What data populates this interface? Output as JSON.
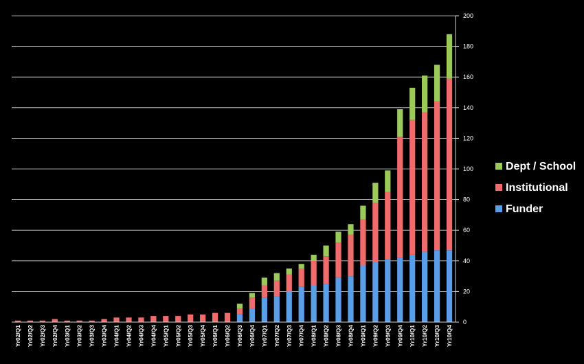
{
  "chart_data": {
    "type": "bar",
    "stacked": true,
    "title": "",
    "xlabel": "",
    "ylabel": "",
    "ylim": [
      0,
      200
    ],
    "yticks": [
      0,
      20,
      40,
      60,
      80,
      100,
      120,
      140,
      160,
      180,
      200
    ],
    "y_axis_side": "right",
    "grid": true,
    "legend_position": "right",
    "categories": [
      "Yr02/Q1",
      "Yr02/Q2",
      "Yr02/Q3",
      "Yr02/Q4",
      "Yr03/Q1",
      "Yr03/Q2",
      "Yr03/Q3",
      "Yr03/Q4",
      "Yr04/Q1",
      "Yr04/Q2",
      "Yr04/Q3",
      "Yr04/Q4",
      "Yr05/Q1",
      "Yr05/Q2",
      "Yr05/Q3",
      "Yr05/Q4",
      "Yr06/Q1",
      "Yr06/Q2",
      "Yr06/Q3",
      "Yr06/Q4",
      "Yr07/Q1",
      "Yr07/Q2",
      "Yr07/Q3",
      "Yr07/Q4",
      "Yr08/Q1",
      "Yr08/Q2",
      "Yr08/Q3",
      "Yr08/Q4",
      "Yr09/Q1",
      "Yr09/Q2",
      "Yr09/Q3",
      "Yr09/Q4",
      "Yr10/Q1",
      "Yr10/Q2",
      "Yr10/Q3",
      "Yr10/Q4"
    ],
    "series": [
      {
        "name": "Funder",
        "color": "#5b9ee8",
        "values": [
          0,
          0,
          0,
          0,
          0,
          0,
          0,
          0,
          0,
          0,
          0,
          0,
          0,
          0,
          0,
          0,
          0,
          0,
          5,
          9,
          16,
          17,
          20,
          23,
          24,
          25,
          29,
          30,
          37,
          39,
          41,
          42,
          44,
          46,
          47,
          47
        ]
      },
      {
        "name": "Institutional",
        "color": "#f06b6b",
        "values": [
          1,
          1,
          1,
          2,
          1,
          1,
          1,
          2,
          3,
          3,
          3,
          4,
          4,
          4,
          5,
          5,
          6,
          6,
          4,
          7,
          8,
          10,
          11,
          12,
          16,
          18,
          23,
          27,
          30,
          39,
          44,
          79,
          88,
          91,
          97,
          112
        ]
      },
      {
        "name": "Dept / School",
        "color": "#9bc95a",
        "values": [
          0,
          0,
          0,
          0,
          0,
          0,
          0,
          0,
          0,
          0,
          0,
          0,
          0,
          0,
          0,
          0,
          0,
          0,
          3,
          3,
          5,
          5,
          4,
          3,
          4,
          7,
          7,
          7,
          9,
          13,
          14,
          18,
          21,
          24,
          24,
          29
        ]
      }
    ]
  }
}
